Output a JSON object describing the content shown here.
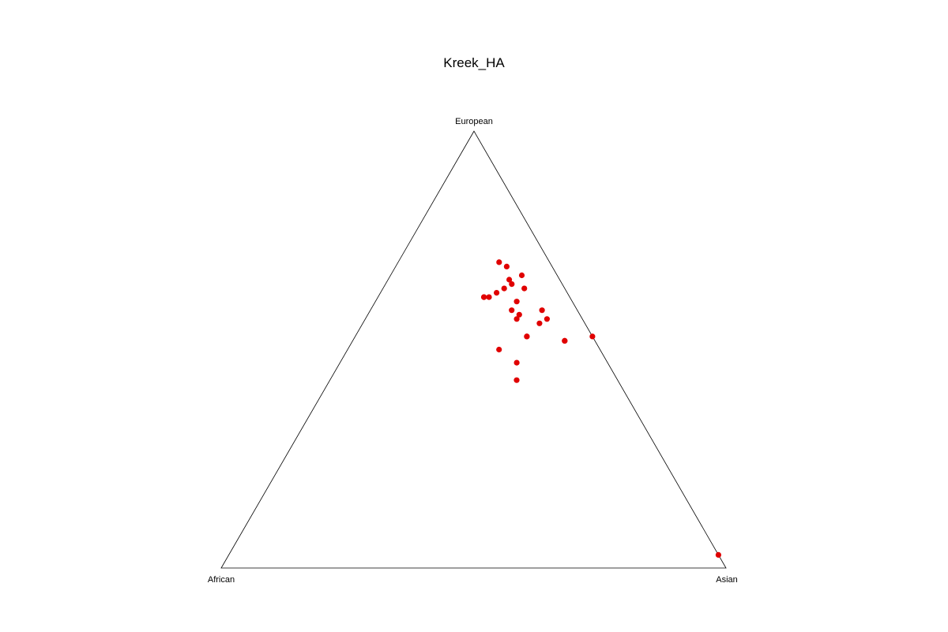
{
  "chart_data": {
    "type": "scatter",
    "subtype": "ternary",
    "title": "Kreek_HA",
    "vertices": {
      "top": "European",
      "bottom_left": "African",
      "bottom_right": "Asian"
    },
    "components": [
      "European",
      "African",
      "Asian"
    ],
    "point_color": "#e00000",
    "points": [
      {
        "European": 0.7,
        "African": 0.1,
        "Asian": 0.2
      },
      {
        "European": 0.69,
        "African": 0.09,
        "Asian": 0.22
      },
      {
        "European": 0.67,
        "African": 0.07,
        "Asian": 0.26
      },
      {
        "European": 0.66,
        "African": 0.1,
        "Asian": 0.24
      },
      {
        "European": 0.65,
        "African": 0.1,
        "Asian": 0.25
      },
      {
        "European": 0.64,
        "African": 0.12,
        "Asian": 0.24
      },
      {
        "European": 0.64,
        "African": 0.08,
        "Asian": 0.28
      },
      {
        "European": 0.63,
        "African": 0.14,
        "Asian": 0.23
      },
      {
        "European": 0.62,
        "African": 0.17,
        "Asian": 0.21
      },
      {
        "European": 0.62,
        "African": 0.17,
        "Asian": 0.21
      },
      {
        "European": 0.62,
        "African": 0.16,
        "Asian": 0.22
      },
      {
        "European": 0.61,
        "African": 0.11,
        "Asian": 0.28
      },
      {
        "European": 0.59,
        "African": 0.07,
        "Asian": 0.34
      },
      {
        "European": 0.59,
        "African": 0.13,
        "Asian": 0.28
      },
      {
        "European": 0.58,
        "African": 0.12,
        "Asian": 0.3
      },
      {
        "European": 0.57,
        "African": 0.07,
        "Asian": 0.36
      },
      {
        "European": 0.57,
        "African": 0.13,
        "Asian": 0.3
      },
      {
        "European": 0.56,
        "African": 0.09,
        "Asian": 0.35
      },
      {
        "European": 0.53,
        "African": 0.13,
        "Asian": 0.34
      },
      {
        "European": 0.53,
        "African": 0.13,
        "Asian": 0.34
      },
      {
        "European": 0.52,
        "African": 0.06,
        "Asian": 0.42
      },
      {
        "European": 0.52,
        "African": 0.06,
        "Asian": 0.42
      },
      {
        "European": 0.53,
        "African": 0.0,
        "Asian": 0.47
      },
      {
        "European": 0.5,
        "African": 0.2,
        "Asian": 0.3
      },
      {
        "European": 0.47,
        "African": 0.18,
        "Asian": 0.35
      },
      {
        "European": 0.43,
        "African": 0.2,
        "Asian": 0.37
      },
      {
        "European": 0.03,
        "African": 0.0,
        "Asian": 0.97
      }
    ]
  }
}
